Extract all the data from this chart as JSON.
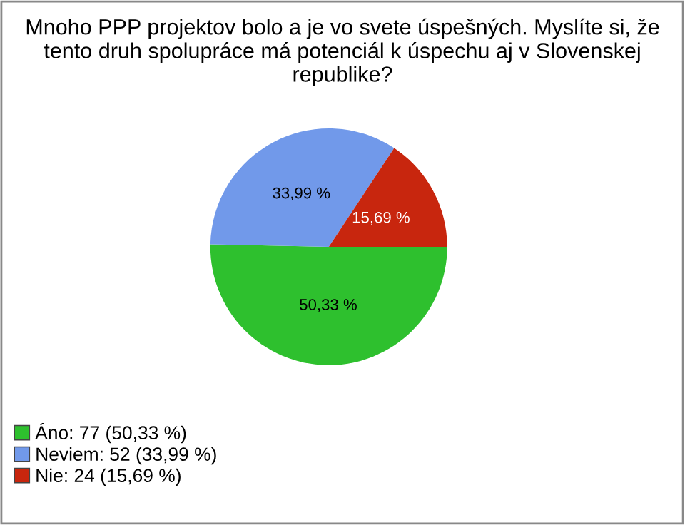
{
  "chart_data": {
    "type": "pie",
    "title": "Mnoho PPP projektov bolo a je vo svete úspešných. Myslíte si, že tento druh spolupráce má potenciál k úspechu aj v Slovenskej republike?",
    "categories": [
      "Áno: 77 (50,33 %)",
      "Neviem: 52 (33,99 %)",
      "Nie: 24 (15,69 %)"
    ],
    "values": [
      50.33,
      33.99,
      15.69
    ],
    "value_labels": [
      "50,33 %",
      "33,99 %",
      "15,69 %"
    ],
    "colors": [
      "#2ec02e",
      "#7199ea",
      "#c8260e"
    ],
    "legend": "bottom left"
  }
}
